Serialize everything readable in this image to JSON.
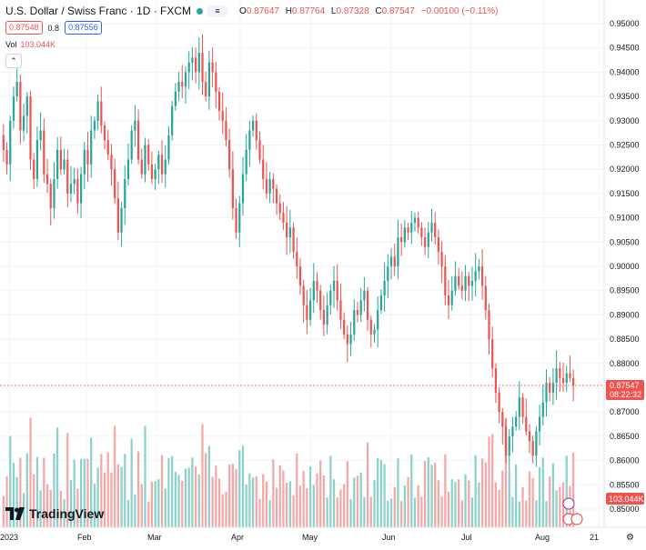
{
  "header": {
    "title": "U.S. Dollar / Swiss Franc · 1D · FXCM",
    "status_color": "#26a69a",
    "flag_icon": "equals-icon",
    "ohlc": [
      {
        "k": "O",
        "v": "0.87647"
      },
      {
        "k": "H",
        "v": "0.87764"
      },
      {
        "k": "L",
        "v": "0.87328"
      },
      {
        "k": "C",
        "v": "0.87547"
      },
      {
        "k": "",
        "v": "−0.00100 (−0.11%)"
      }
    ]
  },
  "trade": {
    "sell_price": "0.87548",
    "spread": "0.8",
    "buy_price": "0.87556"
  },
  "volume_label": {
    "label": "Vol",
    "value": "103.044K"
  },
  "collapse_icon": "chevron-up-icon",
  "price_axis": {
    "ticks": [
      "0.95000",
      "0.94500",
      "0.94000",
      "0.93500",
      "0.93000",
      "0.92500",
      "0.92000",
      "0.91500",
      "0.91000",
      "0.90500",
      "0.90000",
      "0.89500",
      "0.89000",
      "0.88500",
      "0.88000",
      "0.87500",
      "0.87000",
      "0.86500",
      "0.86000",
      "0.85500",
      "0.85000"
    ],
    "last_price": "0.87547",
    "countdown": "08:22:32",
    "volume_badge": "103.044K"
  },
  "time_axis": {
    "labels": [
      "2023",
      "Feb",
      "Mar",
      "Apr",
      "May",
      "Jun",
      "Jul",
      "Aug",
      "21"
    ]
  },
  "logo": {
    "text": "TradingView"
  },
  "colors": {
    "up": "#26a69a",
    "down": "#ef5350",
    "up_volume": "#8bd1c9",
    "down_volume": "#f5a7a6",
    "grid": "#f0f3fa",
    "text": "#131722",
    "price_line": "#ef5350"
  },
  "chart_data": {
    "type": "candlestick",
    "x_start": "2023-01-02",
    "y_range": [
      0.85,
      0.95
    ],
    "grid": true,
    "closes": [
      0.924,
      0.921,
      0.93,
      0.935,
      0.938,
      0.928,
      0.931,
      0.935,
      0.922,
      0.918,
      0.926,
      0.928,
      0.919,
      0.917,
      0.912,
      0.918,
      0.924,
      0.92,
      0.922,
      0.915,
      0.917,
      0.918,
      0.913,
      0.919,
      0.924,
      0.921,
      0.928,
      0.93,
      0.934,
      0.929,
      0.926,
      0.923,
      0.92,
      0.914,
      0.907,
      0.912,
      0.918,
      0.922,
      0.928,
      0.93,
      0.922,
      0.919,
      0.925,
      0.921,
      0.918,
      0.92,
      0.923,
      0.919,
      0.922,
      0.927,
      0.933,
      0.936,
      0.938,
      0.937,
      0.94,
      0.942,
      0.943,
      0.94,
      0.944,
      0.938,
      0.935,
      0.942,
      0.94,
      0.936,
      0.932,
      0.93,
      0.926,
      0.92,
      0.912,
      0.907,
      0.913,
      0.919,
      0.924,
      0.928,
      0.93,
      0.926,
      0.922,
      0.918,
      0.915,
      0.918,
      0.916,
      0.913,
      0.911,
      0.909,
      0.906,
      0.908,
      0.903,
      0.9,
      0.896,
      0.892,
      0.889,
      0.893,
      0.897,
      0.895,
      0.891,
      0.888,
      0.892,
      0.895,
      0.897,
      0.893,
      0.889,
      0.886,
      0.884,
      0.886,
      0.891,
      0.89,
      0.893,
      0.895,
      0.889,
      0.886,
      0.887,
      0.891,
      0.894,
      0.897,
      0.9,
      0.902,
      0.9,
      0.906,
      0.905,
      0.908,
      0.907,
      0.909,
      0.91,
      0.908,
      0.906,
      0.904,
      0.907,
      0.909,
      0.906,
      0.903,
      0.9,
      0.894,
      0.892,
      0.895,
      0.898,
      0.896,
      0.895,
      0.898,
      0.896,
      0.897,
      0.899,
      0.9,
      0.896,
      0.891,
      0.885,
      0.879,
      0.874,
      0.87,
      0.867,
      0.861,
      0.865,
      0.867,
      0.869,
      0.873,
      0.869,
      0.866,
      0.864,
      0.861,
      0.866,
      0.869,
      0.872,
      0.876,
      0.874,
      0.876,
      0.879,
      0.877,
      0.876,
      0.878,
      0.877,
      0.8755
    ],
    "opens_note": "",
    "last_close": 0.87547
  }
}
